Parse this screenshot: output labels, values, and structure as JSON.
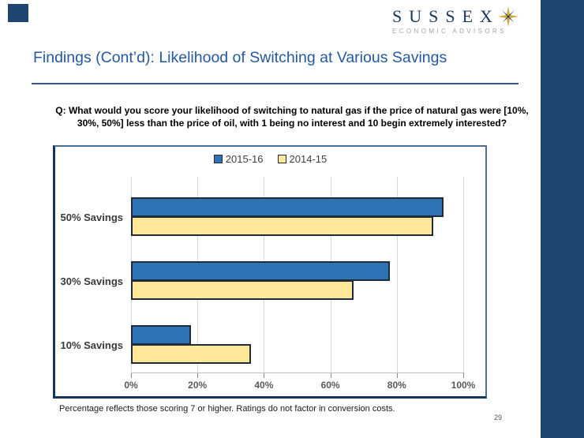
{
  "logo": {
    "name": "SUSSEX",
    "tagline": "ECONOMIC ADVISORS"
  },
  "header": {
    "title": "Findings (Cont’d): Likelihood of Switching at Various Savings"
  },
  "question": {
    "text": "Q: What would you score your likelihood of switching to natural gas if the price of natural gas were [10%, 30%, 50%] less than the price of oil, with 1 being no interest and 10 begin extremely interested?"
  },
  "chart_data": {
    "type": "bar",
    "orientation": "horizontal",
    "title": "",
    "categories": [
      "50% Savings",
      "30% Savings",
      "10% Savings"
    ],
    "series": [
      {
        "name": "2015-16",
        "color": "#2E74B5",
        "values": [
          94,
          78,
          18
        ]
      },
      {
        "name": "2014-15",
        "color": "#FFE699",
        "values": [
          91,
          67,
          36
        ]
      }
    ],
    "xlim": [
      0,
      100
    ],
    "x_ticks": [
      "0%",
      "20%",
      "40%",
      "60%",
      "80%",
      "100%"
    ],
    "grid": true,
    "legend_position": "top"
  },
  "footnote": {
    "text": "Percentage reflects those scoring 7 or higher. Ratings do not factor in conversion costs."
  },
  "footer": {
    "page_number": "29"
  },
  "colors": {
    "sidebar_navy": "#1F4571",
    "logo_navy": "#17365D",
    "logo_gold": "#D4A93C",
    "title_blue": "#2457A4",
    "gridline": "#D9D9D9",
    "bar_border": "#1F2A3A"
  }
}
